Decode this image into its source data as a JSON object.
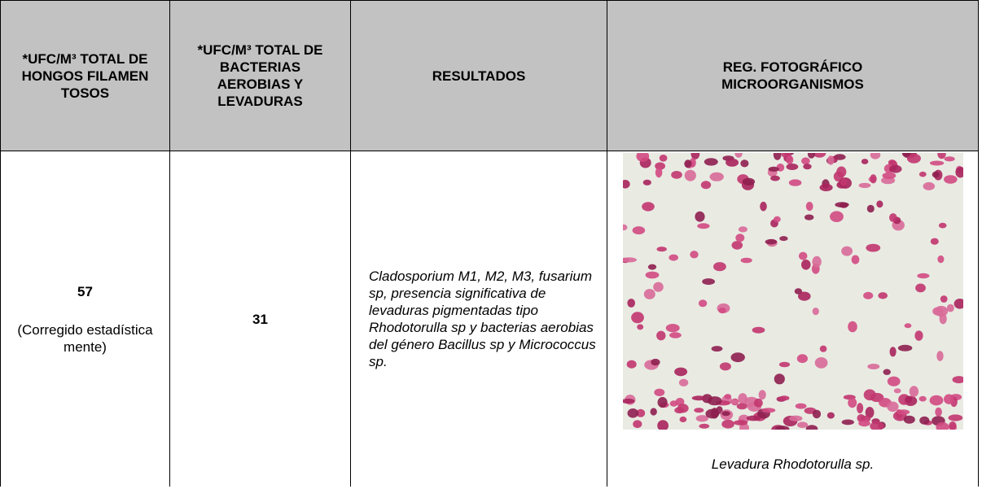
{
  "table": {
    "header": [
      "*UFC/M³ TOTAL DE HONGOS FILAMENTOSOS",
      "*UFC/M³ TOTAL DE BACTERIAS AEROBIAS Y LEVADURAS",
      "RESULTADOS",
      "REG. FOTOGRÁFICO MICROORGANISMOS"
    ],
    "row": {
      "fungi_value": "57",
      "fungi_note": "(Corregido estadísticamente)",
      "bacteria_value": "31",
      "results": "Cladosporium M1, M2, M3, fusarium sp, presencia significativa de levaduras pigmentadas tipo Rhodotorulla sp y bacterias aerobias del género Bacillus sp y Micrococcus sp.",
      "photo_caption": "Levadura Rhodotorulla sp."
    }
  }
}
